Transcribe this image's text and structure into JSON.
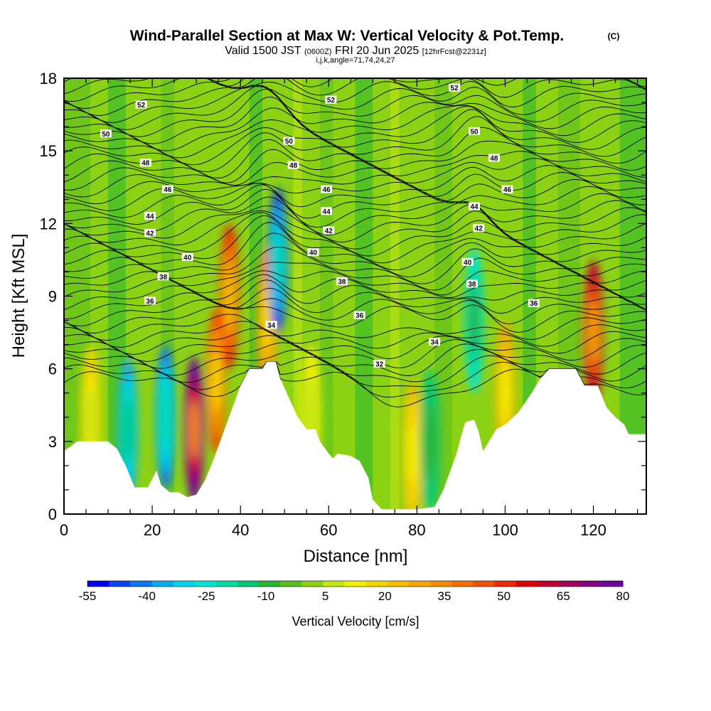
{
  "chart_data": {
    "type": "heatmap",
    "title": "Wind-Parallel Section at Max W: Vertical Velocity & Pot.Temp.",
    "title_mark": "(C)",
    "subtitle": {
      "valid_prefix": "Valid 1500 JST",
      "utc": "(0600Z)",
      "date": "FRI 20 Jun 2025",
      "forecast": "[12hrFcst@2231z]"
    },
    "subtitle2": "i,j,k,angle=71,74,24,27",
    "xlabel": "Distance [nm]",
    "ylabel": "Height [Kft MSL]",
    "xlim": [
      0,
      132
    ],
    "ylim": [
      0,
      18
    ],
    "x_ticks": [
      0,
      20,
      40,
      60,
      80,
      100,
      120
    ],
    "y_ticks": [
      0,
      3,
      6,
      9,
      12,
      15,
      18
    ],
    "colorbar": {
      "title": "Vertical Velocity [cm/s]",
      "tick_labels": [
        -55,
        -40,
        -25,
        -10,
        5,
        20,
        35,
        50,
        65,
        80
      ],
      "colors": [
        "#0000f0",
        "#0a46f0",
        "#0a78f0",
        "#0aaaf0",
        "#00d2f0",
        "#00e6d2",
        "#00dcaa",
        "#00c878",
        "#28b432",
        "#5abe1e",
        "#8cd214",
        "#c3e614",
        "#f0f000",
        "#f5d700",
        "#f5be00",
        "#f5a500",
        "#f58c00",
        "#f56e00",
        "#f05000",
        "#eb2800",
        "#e10000",
        "#c30032",
        "#a5005a",
        "#870082",
        "#6e00a0"
      ]
    },
    "updraft_cores": [
      {
        "x": 29.5,
        "y": 3.5,
        "w": 80
      },
      {
        "x": 37.5,
        "y": 9.0,
        "w": 50
      },
      {
        "x": 34.5,
        "y": 5.5,
        "w": 45
      },
      {
        "x": 120,
        "y": 7.5,
        "w": 60
      },
      {
        "x": 46,
        "y": 8.0,
        "w": 35
      },
      {
        "x": 100,
        "y": 5.0,
        "w": 30
      },
      {
        "x": 6,
        "y": 4.0,
        "w": 20
      },
      {
        "x": 56,
        "y": 4.0,
        "w": 15
      },
      {
        "x": 79,
        "y": 2.5,
        "w": 25
      }
    ],
    "downdraft_cores": [
      {
        "x": 14.5,
        "y": 3.5,
        "w": -35
      },
      {
        "x": 23,
        "y": 4.0,
        "w": -40
      },
      {
        "x": 48.5,
        "y": 10.5,
        "w": -45
      },
      {
        "x": 93,
        "y": 8.0,
        "w": -25
      },
      {
        "x": 83,
        "y": 3.0,
        "w": -15
      }
    ],
    "potential_temp_contour_labels": [
      {
        "text": "52",
        "x": 17.5,
        "y": 16.9
      },
      {
        "text": "52",
        "x": 60.5,
        "y": 17.1
      },
      {
        "text": "52",
        "x": 88.5,
        "y": 17.6
      },
      {
        "text": "50",
        "x": 9.5,
        "y": 15.7
      },
      {
        "text": "50",
        "x": 51,
        "y": 15.4
      },
      {
        "text": "50",
        "x": 93,
        "y": 15.8
      },
      {
        "text": "48",
        "x": 18.5,
        "y": 14.5
      },
      {
        "text": "48",
        "x": 52,
        "y": 14.4
      },
      {
        "text": "48",
        "x": 97.5,
        "y": 14.7
      },
      {
        "text": "46",
        "x": 23.5,
        "y": 13.4
      },
      {
        "text": "46",
        "x": 59.5,
        "y": 13.4
      },
      {
        "text": "46",
        "x": 100.5,
        "y": 13.4
      },
      {
        "text": "44",
        "x": 19.5,
        "y": 12.3
      },
      {
        "text": "44",
        "x": 59.5,
        "y": 12.5
      },
      {
        "text": "44",
        "x": 93,
        "y": 12.7
      },
      {
        "text": "42",
        "x": 19.5,
        "y": 11.6
      },
      {
        "text": "42",
        "x": 60,
        "y": 11.7
      },
      {
        "text": "42",
        "x": 94,
        "y": 11.8
      },
      {
        "text": "40",
        "x": 28,
        "y": 10.6
      },
      {
        "text": "40",
        "x": 56.5,
        "y": 10.8
      },
      {
        "text": "40",
        "x": 91.5,
        "y": 10.4
      },
      {
        "text": "38",
        "x": 22.5,
        "y": 9.8
      },
      {
        "text": "38",
        "x": 63,
        "y": 9.6
      },
      {
        "text": "38",
        "x": 92.5,
        "y": 9.5
      },
      {
        "text": "36",
        "x": 19.5,
        "y": 8.8
      },
      {
        "text": "36",
        "x": 67,
        "y": 8.2
      },
      {
        "text": "36",
        "x": 106.5,
        "y": 8.7
      },
      {
        "text": "34",
        "x": 47,
        "y": 7.8
      },
      {
        "text": "34",
        "x": 84,
        "y": 7.1
      },
      {
        "text": "32",
        "x": 71.5,
        "y": 6.2
      }
    ],
    "terrain_profile": [
      [
        0,
        2.6
      ],
      [
        3,
        3.0
      ],
      [
        10,
        3.0
      ],
      [
        12,
        2.7
      ],
      [
        14,
        2.0
      ],
      [
        16,
        1.1
      ],
      [
        19,
        1.1
      ],
      [
        21,
        1.8
      ],
      [
        22,
        1.2
      ],
      [
        24,
        0.9
      ],
      [
        26,
        0.9
      ],
      [
        28,
        0.7
      ],
      [
        30,
        0.8
      ],
      [
        32,
        1.4
      ],
      [
        34,
        2.3
      ],
      [
        36,
        3.3
      ],
      [
        38,
        4.3
      ],
      [
        40,
        5.3
      ],
      [
        42,
        6.0
      ],
      [
        45,
        6.0
      ],
      [
        46,
        6.3
      ],
      [
        48,
        6.3
      ],
      [
        49,
        5.6
      ],
      [
        51,
        4.8
      ],
      [
        53,
        4.0
      ],
      [
        55,
        3.5
      ],
      [
        57,
        3.5
      ],
      [
        58,
        3.0
      ],
      [
        60,
        2.5
      ],
      [
        61,
        2.3
      ],
      [
        62,
        2.5
      ],
      [
        65,
        2.4
      ],
      [
        67,
        2.2
      ],
      [
        69,
        1.5
      ],
      [
        70,
        0.6
      ],
      [
        72,
        0.2
      ],
      [
        80,
        0.2
      ],
      [
        84,
        0.3
      ],
      [
        86,
        1.0
      ],
      [
        88,
        2.0
      ],
      [
        89,
        2.5
      ],
      [
        90,
        3.2
      ],
      [
        91,
        3.8
      ],
      [
        93,
        3.9
      ],
      [
        94,
        3.4
      ],
      [
        95,
        2.6
      ],
      [
        96,
        2.9
      ],
      [
        97,
        3.2
      ],
      [
        98,
        3.5
      ],
      [
        100,
        3.7
      ],
      [
        103,
        4.2
      ],
      [
        106,
        5.0
      ],
      [
        108,
        5.6
      ],
      [
        110,
        6.0
      ],
      [
        116,
        6.0
      ],
      [
        118,
        5.3
      ],
      [
        121,
        5.3
      ],
      [
        123,
        4.4
      ],
      [
        125,
        4.0
      ],
      [
        127,
        3.7
      ],
      [
        128,
        3.3
      ],
      [
        132,
        3.3
      ]
    ]
  }
}
